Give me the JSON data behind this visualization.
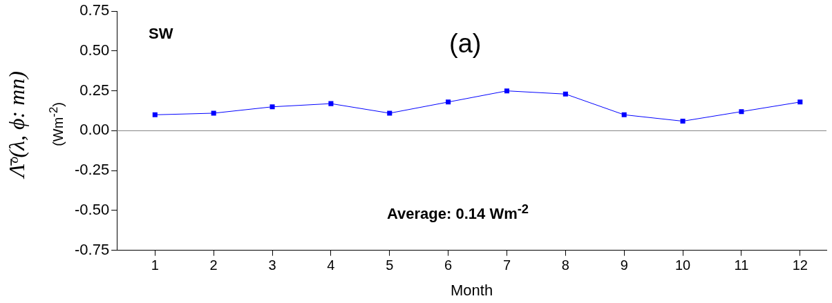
{
  "chart_data": {
    "type": "line",
    "ylabel": "Λ̄ᵒ(λ, ϕ: mn)\n(Wm$^{-2}$)",
    "xlabel": "Month",
    "x": [
      1,
      2,
      3,
      4,
      5,
      6,
      7,
      8,
      9,
      10,
      11,
      12
    ],
    "xlim": [
      0.35,
      12.45
    ],
    "xticks": [
      1,
      2,
      3,
      4,
      5,
      6,
      7,
      8,
      9,
      10,
      11,
      12
    ],
    "series": [
      {
        "color": "#0000ff",
        "values": [
          0.1,
          0.11,
          0.15,
          0.17,
          0.11,
          0.18,
          0.25,
          0.23,
          0.1,
          0.06,
          0.12,
          0.18
        ]
      }
    ],
    "ylim": [
      -0.75,
      0.75
    ],
    "yticks": [
      -0.75,
      {
        "value": -0.5,
        "label": "-0.50"
      },
      -0.25,
      {
        "value": 0,
        "label": "0.00"
      },
      0.25,
      {
        "value": 0.5,
        "label": "0.50"
      },
      0.75
    ],
    "ref_lines": [
      {
        "axis": "y",
        "value": 0,
        "color": "#808080"
      }
    ],
    "annotations": [
      "SW",
      "(a)",
      "Average: 0.14 Wm$^{-2}$"
    ],
    "marker": "square",
    "line_style": "solid",
    "grid": false,
    "legend": false
  }
}
